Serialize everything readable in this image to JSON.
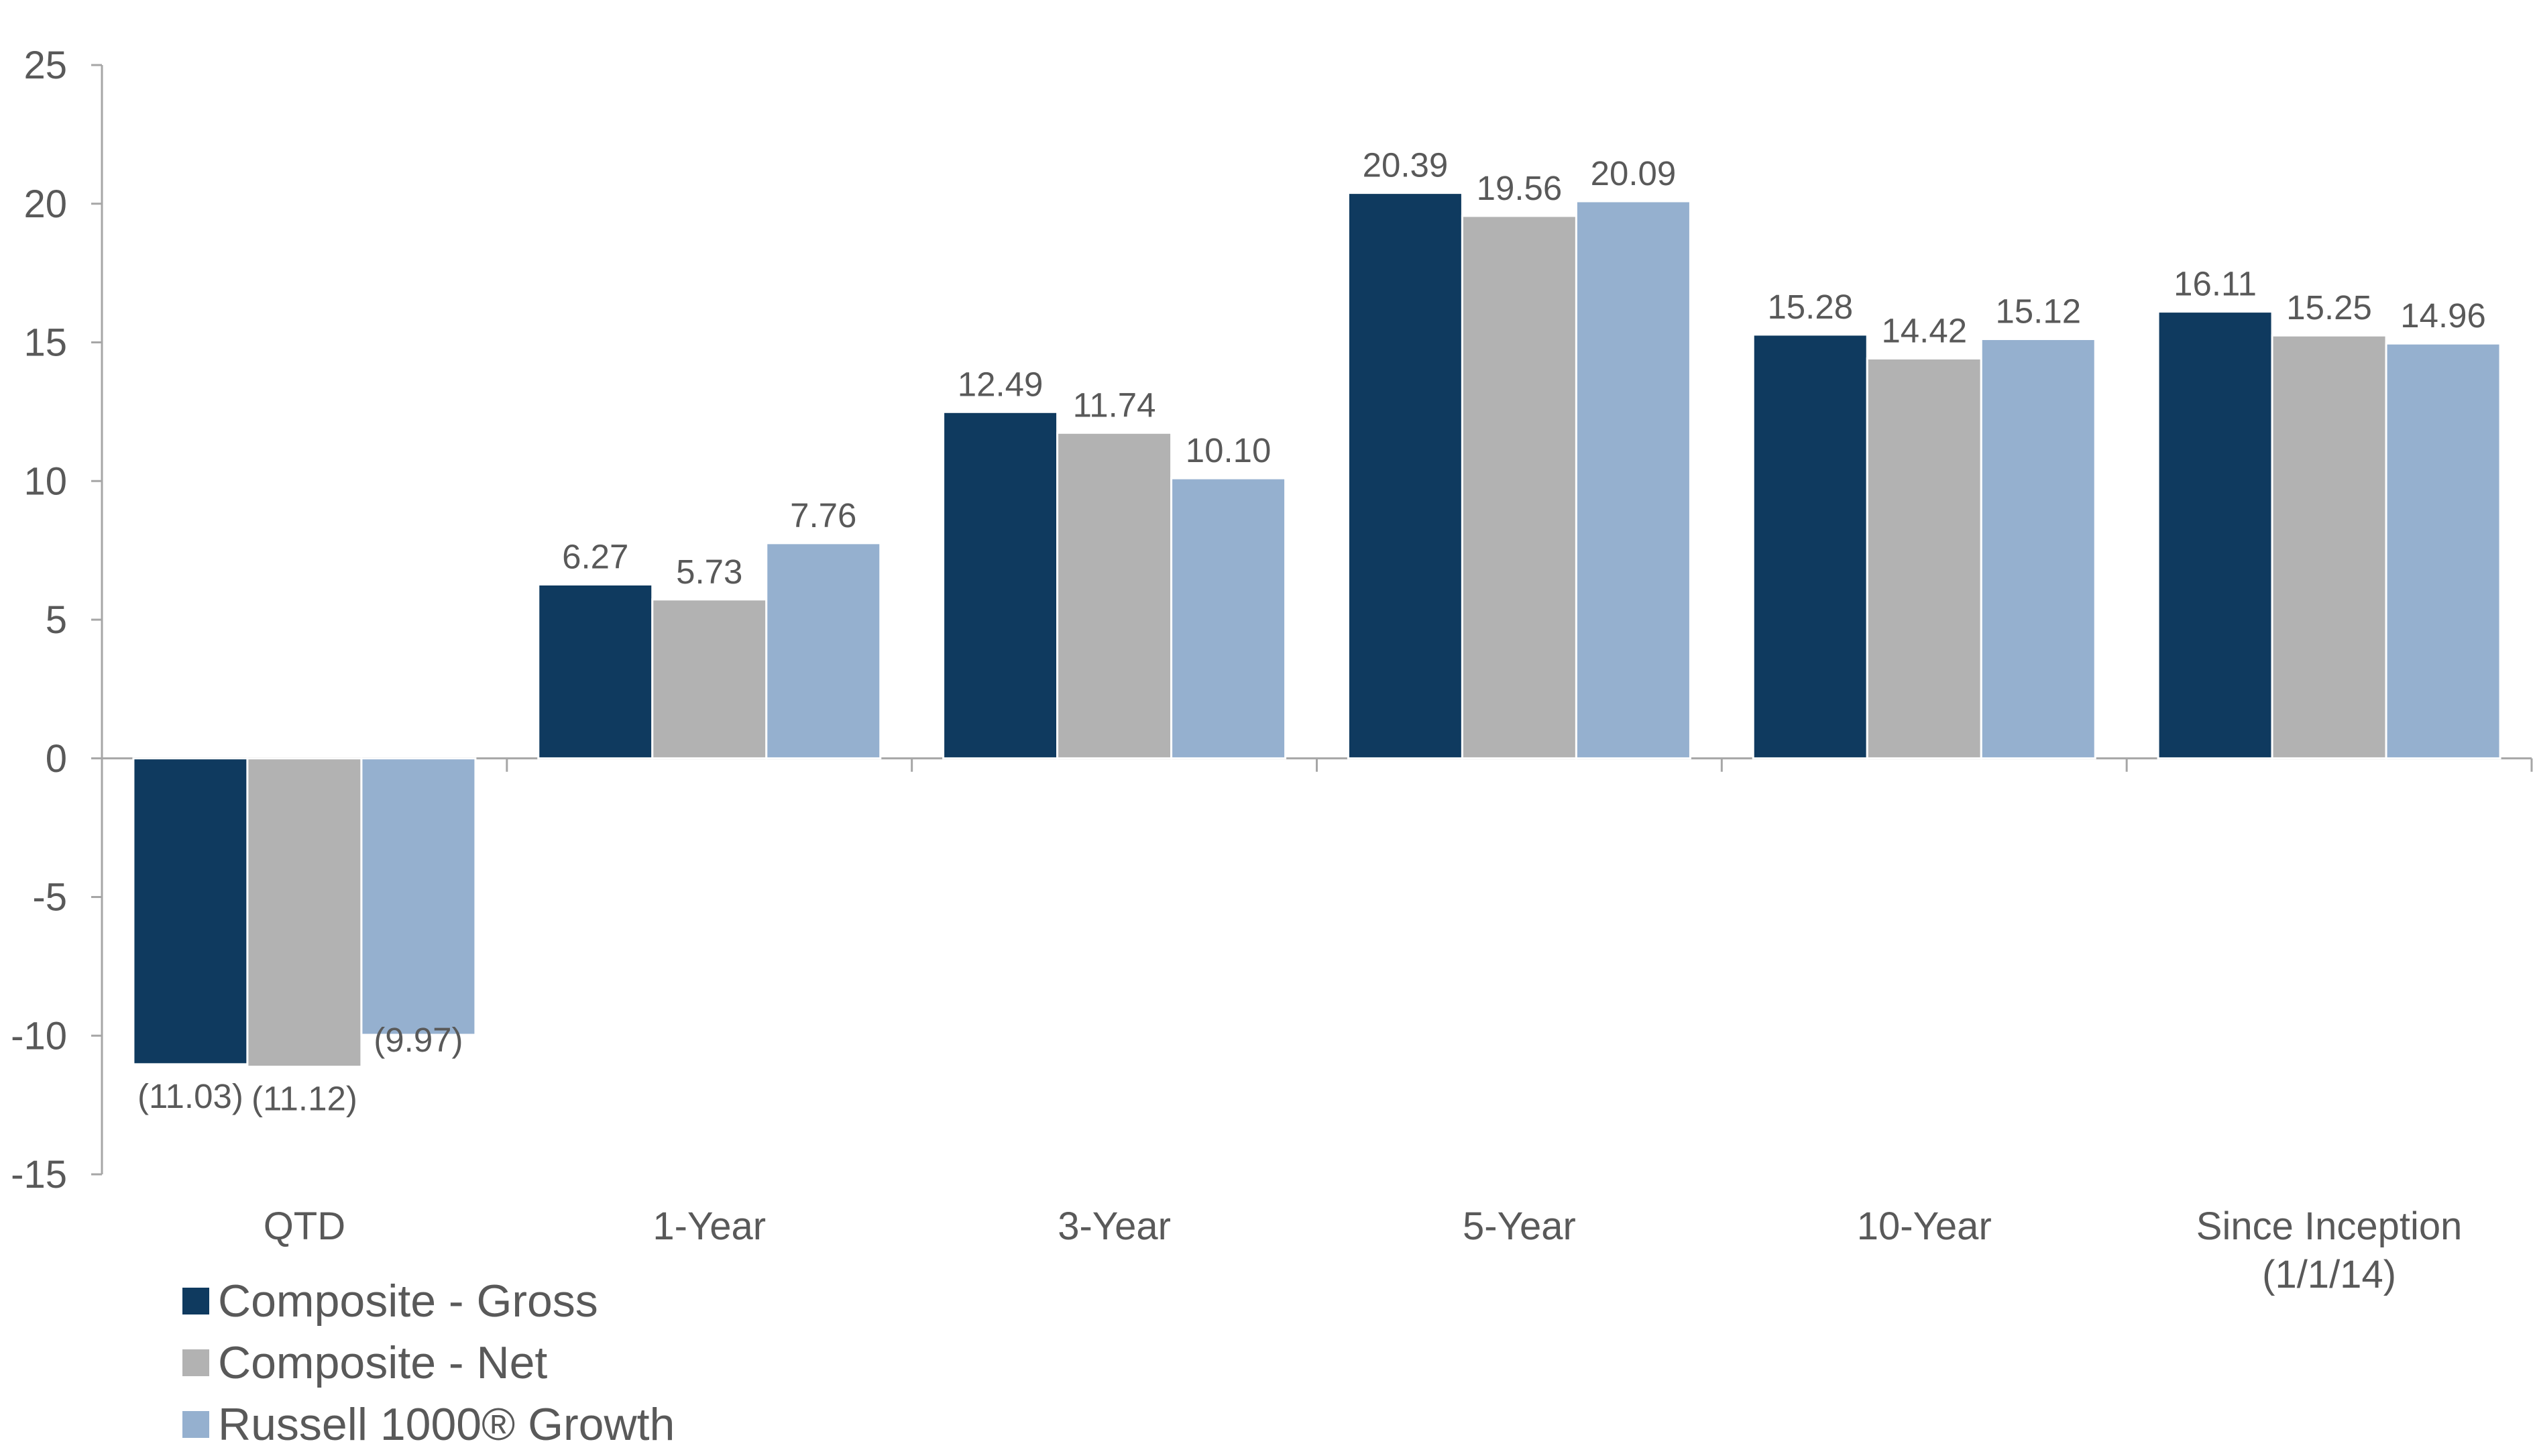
{
  "chart_data": {
    "type": "bar",
    "categories": [
      "QTD",
      "1-Year",
      "3-Year",
      "5-Year",
      "10-Year",
      "Since Inception (1/1/14)"
    ],
    "category_lines": [
      [
        "QTD"
      ],
      [
        "1-Year"
      ],
      [
        "3-Year"
      ],
      [
        "5-Year"
      ],
      [
        "10-Year"
      ],
      [
        "Since Inception",
        "(1/1/14)"
      ]
    ],
    "series": [
      {
        "name": "Composite - Gross",
        "color": "#0f3a5f",
        "values": [
          -11.03,
          6.27,
          12.49,
          20.39,
          15.28,
          16.11
        ],
        "labels": [
          "(11.03)",
          "6.27",
          "12.49",
          "20.39",
          "15.28",
          "16.11"
        ]
      },
      {
        "name": "Composite - Net",
        "color": "#b2b2b2",
        "values": [
          -11.12,
          5.73,
          11.74,
          19.56,
          14.42,
          15.25
        ],
        "labels": [
          "(11.12)",
          "5.73",
          "11.74",
          "19.56",
          "14.42",
          "15.25"
        ]
      },
      {
        "name": "Russell 1000® Growth",
        "color": "#95b0cf",
        "values": [
          -9.97,
          7.76,
          10.1,
          20.09,
          15.12,
          14.96
        ],
        "labels": [
          "(9.97)",
          "7.76",
          "10.10",
          "20.09",
          "15.12",
          "14.96"
        ]
      }
    ],
    "ylim": [
      -15,
      25
    ],
    "yticks": [
      25,
      20,
      15,
      10,
      5,
      0,
      -5,
      -10,
      -15
    ],
    "ytick_labels": [
      "25",
      "20",
      "15",
      "10",
      "5",
      "0",
      "-5",
      "-10",
      "-15"
    ],
    "title": "",
    "xlabel": "",
    "ylabel": "",
    "grid": false,
    "legend_position": "bottom-left"
  }
}
